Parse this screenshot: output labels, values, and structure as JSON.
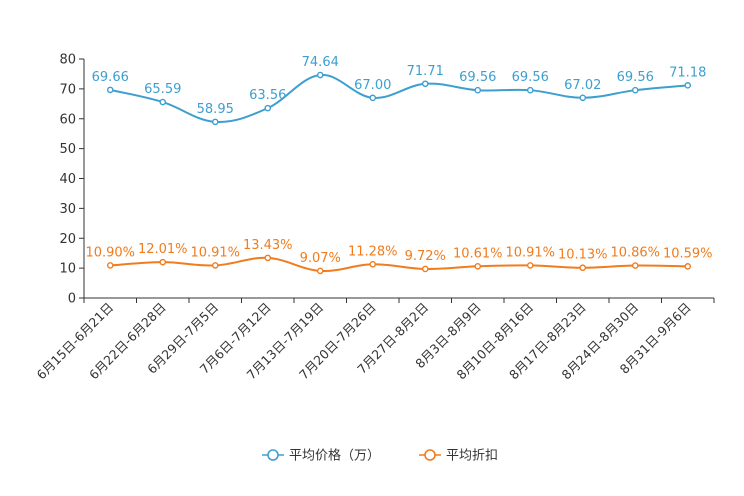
{
  "chart_data": {
    "type": "line",
    "title": "",
    "xlabel": "",
    "ylabel": "",
    "ylim": [
      0,
      80
    ],
    "yticks": [
      0,
      10,
      20,
      30,
      40,
      50,
      60,
      70,
      80
    ],
    "categories": [
      "6月15日-6月21日",
      "6月22日-6月28日",
      "6月29日-7月5日",
      "7月6日-7月12日",
      "7月13日-7月19日",
      "7月20日-7月26日",
      "7月27日-8月2日",
      "8月3日-8月9日",
      "8月10日-8月16日",
      "8月17日-8月23日",
      "8月24日-8月30日",
      "8月31日-9月6日"
    ],
    "series": [
      {
        "name": "平均价格（万）",
        "color": "#3d9fd0",
        "values": [
          69.66,
          65.59,
          58.95,
          63.56,
          74.64,
          67.0,
          71.71,
          69.56,
          69.56,
          67.02,
          69.56,
          71.18
        ],
        "labels": [
          "69.66",
          "65.59",
          "58.95",
          "63.56",
          "74.64",
          "67.00",
          "71.71",
          "69.56",
          "69.56",
          "67.02",
          "69.56",
          "71.18"
        ]
      },
      {
        "name": "平均折扣",
        "color": "#f07c1e",
        "values": [
          10.9,
          12.01,
          10.91,
          13.43,
          9.07,
          11.28,
          9.72,
          10.61,
          10.91,
          10.13,
          10.86,
          10.59
        ],
        "labels": [
          "10.90%",
          "12.01%",
          "10.91%",
          "13.43%",
          "9.07%",
          "11.28%",
          "9.72%",
          "10.61%",
          "10.91%",
          "10.13%",
          "10.86%",
          "10.59%"
        ]
      }
    ],
    "legend_position": "bottom-center",
    "grid": false
  }
}
